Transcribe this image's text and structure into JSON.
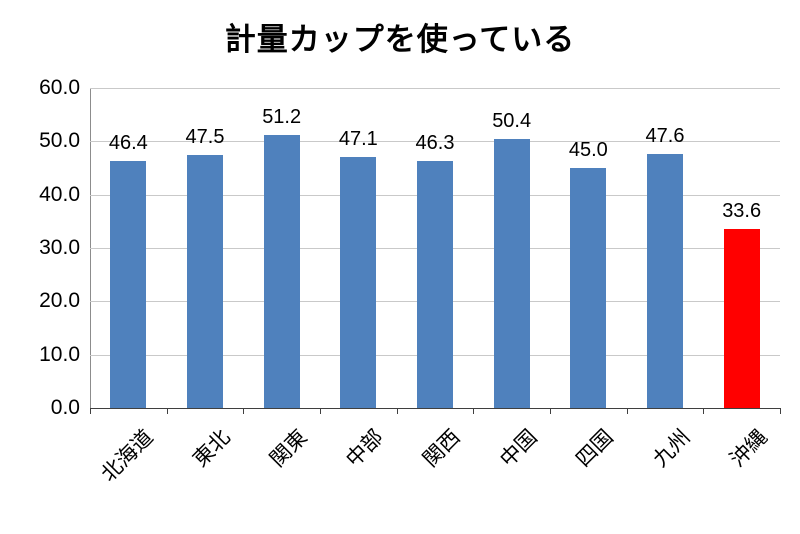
{
  "chart_data": {
    "type": "bar",
    "title": "計量カップを使っている",
    "categories": [
      "北海道",
      "東北",
      "関東",
      "中部",
      "関西",
      "中国",
      "四国",
      "九州",
      "沖縄"
    ],
    "values": [
      46.4,
      47.5,
      51.2,
      47.1,
      46.3,
      50.4,
      45.0,
      47.6,
      33.6
    ],
    "value_labels": [
      "46.4",
      "47.5",
      "51.2",
      "47.1",
      "46.3",
      "50.4",
      "45.0",
      "47.6",
      "33.6"
    ],
    "xlabel": "",
    "ylabel": "",
    "ylim": [
      0,
      60
    ],
    "ytick_interval": 10,
    "ytick_labels": [
      "0.0",
      "10.0",
      "20.0",
      "30.0",
      "40.0",
      "50.0",
      "60.0"
    ],
    "grid": true,
    "legend": "none",
    "highlight_index": 8,
    "colors": {
      "bar": "#4F81BD",
      "highlight": "#FF0000",
      "gridline": "#C9C9C9",
      "axis": "#3F3F3F",
      "text": "#000000",
      "background": "#FFFFFF"
    }
  }
}
